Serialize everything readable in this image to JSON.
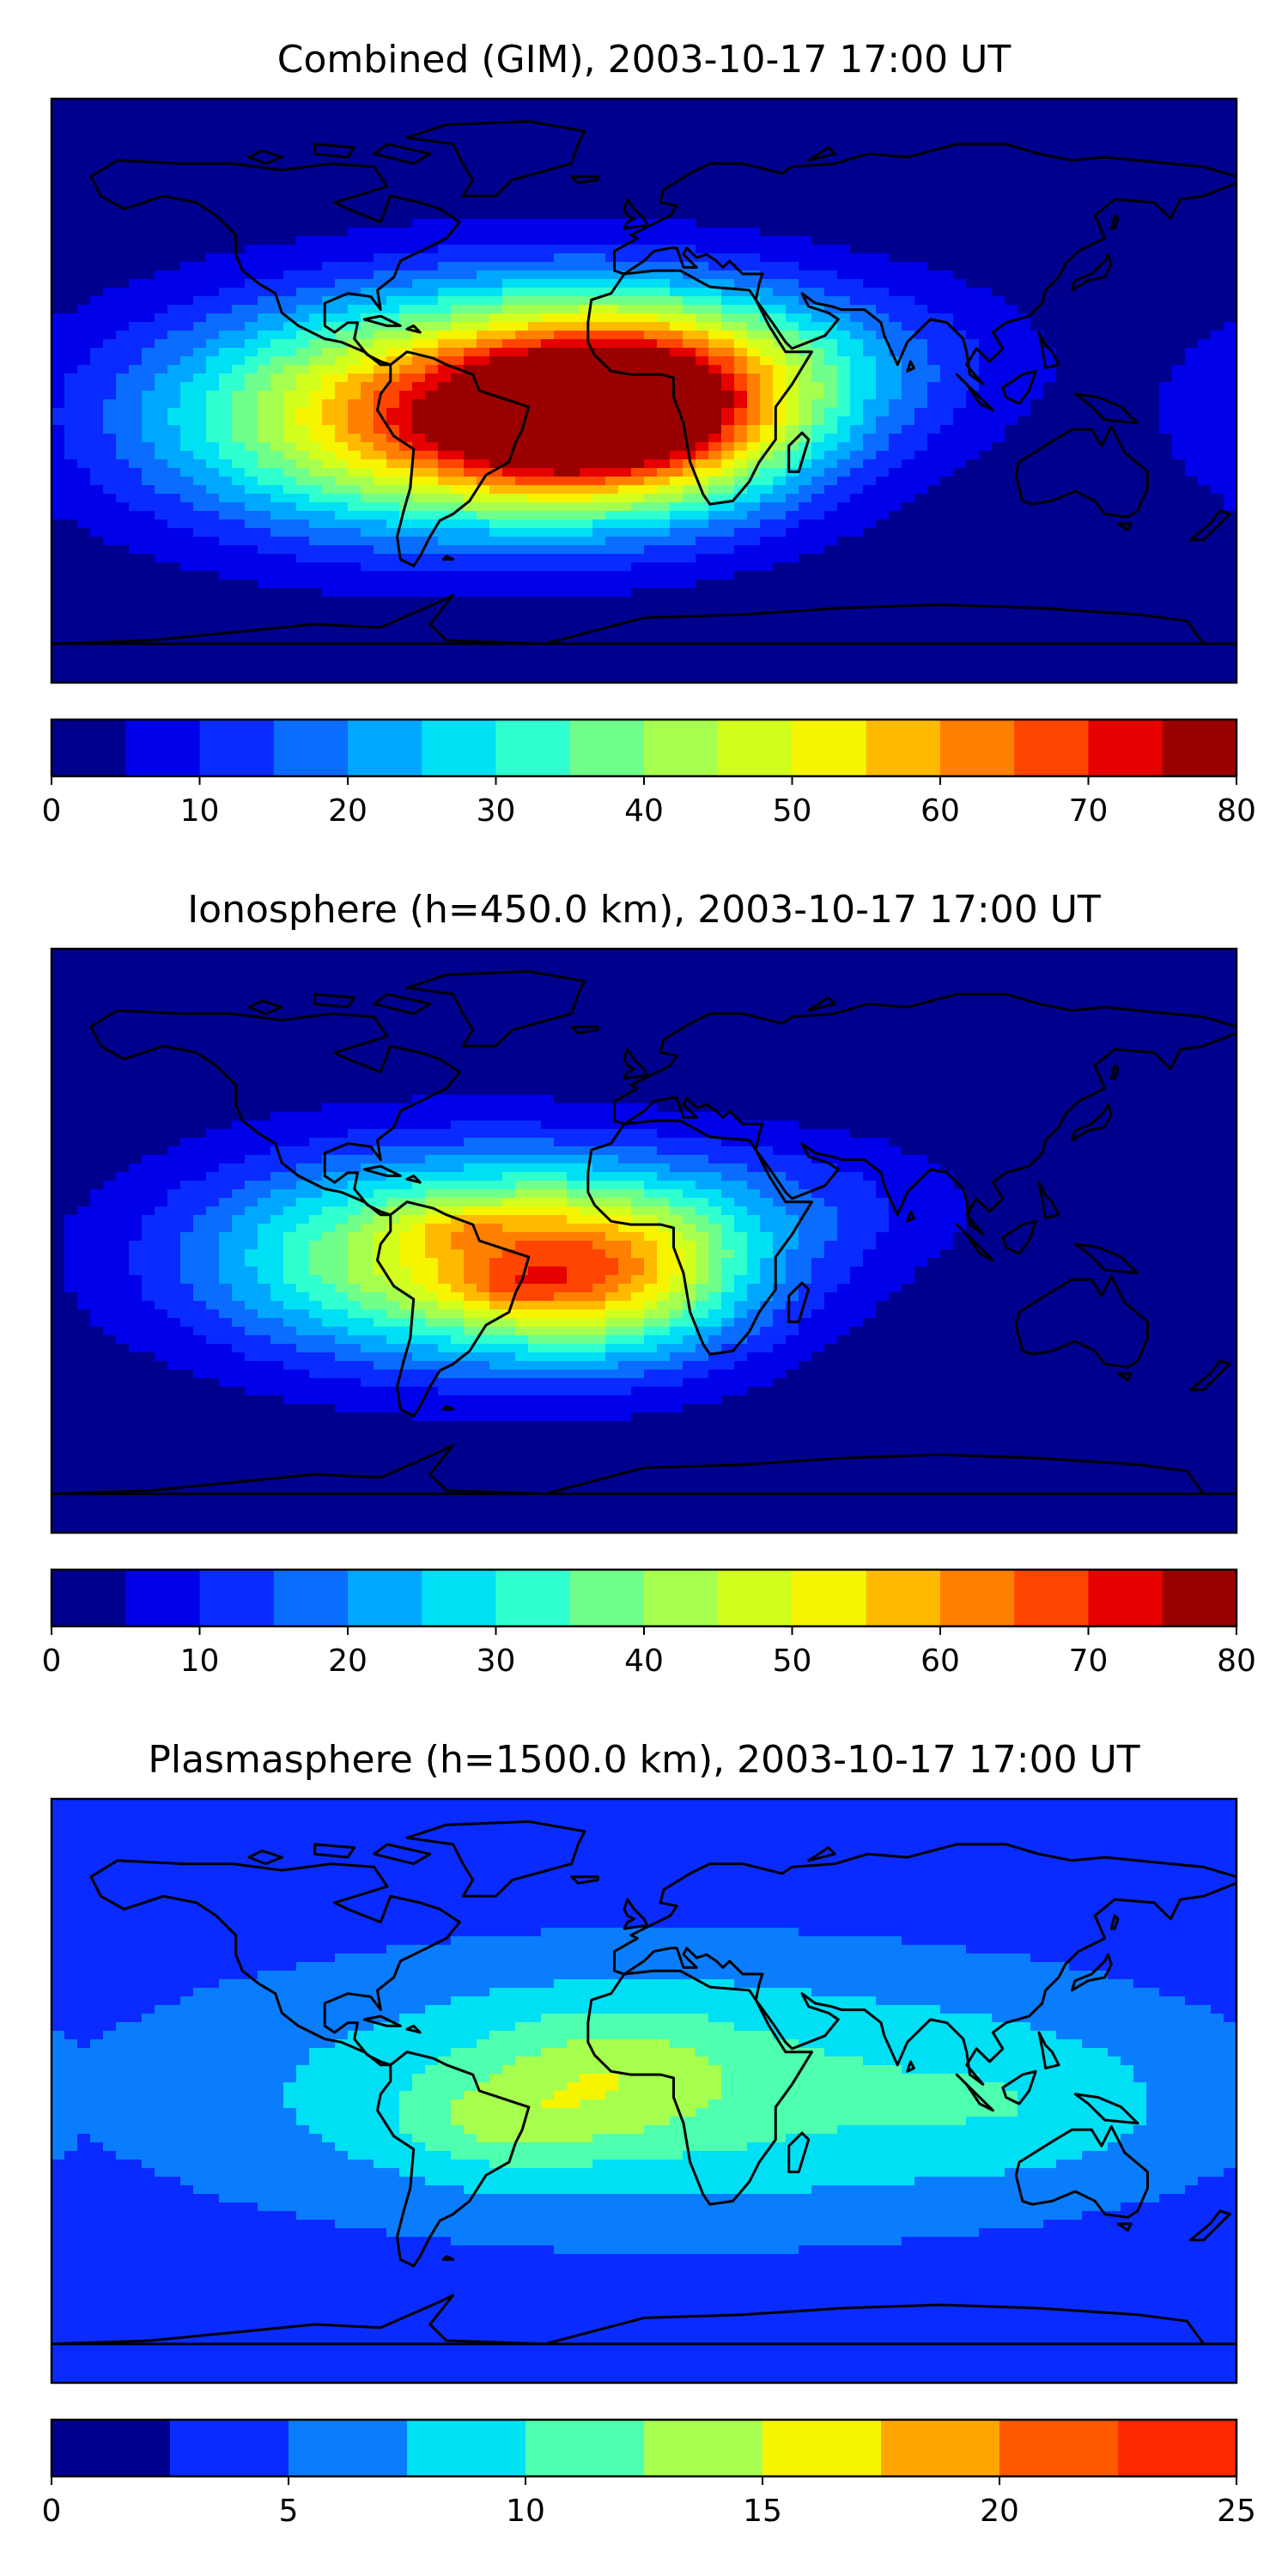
{
  "chart_data": [
    {
      "type": "heatmap",
      "title": "Combined (GIM), 2003-10-17 17:00 UT",
      "colorbar": {
        "levels": [
          0,
          5,
          10,
          15,
          20,
          25,
          30,
          35,
          40,
          45,
          50,
          55,
          60,
          65,
          70,
          75,
          80
        ],
        "ticks": [
          "0",
          "10",
          "20",
          "30",
          "40",
          "50",
          "60",
          "70",
          "80"
        ],
        "colors": [
          "#00008f",
          "#0000ea",
          "#0a2bff",
          "#0a6dff",
          "#00a7ff",
          "#00e0f5",
          "#30ffd0",
          "#70ff8a",
          "#a6ff4e",
          "#d2ff1e",
          "#f7f400",
          "#ffba00",
          "#ff7f00",
          "#ff4500",
          "#e60000",
          "#9b0000"
        ]
      },
      "map": {
        "background": 1,
        "centers": [
          {
            "lon": -60,
            "lat": -8,
            "amp": 62,
            "sx": 60,
            "sy": 24
          },
          {
            "lon": 0,
            "lat": -5,
            "amp": 55,
            "sx": 35,
            "sy": 20
          },
          {
            "lon": -35,
            "lat": -15,
            "amp": 10,
            "sx": 25,
            "sy": 12
          },
          {
            "lon": 60,
            "lat": 10,
            "amp": 12,
            "sx": 40,
            "sy": 18
          },
          {
            "lon": -20,
            "lat": 15,
            "amp": 10,
            "sx": 45,
            "sy": 20
          }
        ]
      }
    },
    {
      "type": "heatmap",
      "title": "Ionosphere  (h=450.0 km), 2003-10-17 17:00 UT",
      "colorbar": {
        "levels": [
          0,
          5,
          10,
          15,
          20,
          25,
          30,
          35,
          40,
          45,
          50,
          55,
          60,
          65,
          70,
          75,
          80
        ],
        "ticks": [
          "0",
          "10",
          "20",
          "30",
          "40",
          "50",
          "60",
          "70",
          "80"
        ],
        "colors": [
          "#00008f",
          "#0000ea",
          "#0a2bff",
          "#0a6dff",
          "#00a7ff",
          "#00e0f5",
          "#30ffd0",
          "#70ff8a",
          "#a6ff4e",
          "#d2ff1e",
          "#f7f400",
          "#ffba00",
          "#ff7f00",
          "#ff4500",
          "#e60000",
          "#9b0000"
        ]
      },
      "map": {
        "background": 1,
        "centers": [
          {
            "lon": -55,
            "lat": -5,
            "amp": 48,
            "sx": 55,
            "sy": 22
          },
          {
            "lon": -10,
            "lat": -10,
            "amp": 30,
            "sx": 30,
            "sy": 18
          },
          {
            "lon": -40,
            "lat": -15,
            "amp": 8,
            "sx": 12,
            "sy": 5
          },
          {
            "lon": -58,
            "lat": 4,
            "amp": 8,
            "sx": 12,
            "sy": 5
          },
          {
            "lon": 50,
            "lat": 12,
            "amp": 8,
            "sx": 35,
            "sy": 15
          }
        ]
      }
    },
    {
      "type": "heatmap",
      "title": "Plasmasphere (h=1500.0 km), 2003-10-17 17:00 UT",
      "colorbar": {
        "levels": [
          0,
          2.5,
          5,
          7.5,
          10,
          12.5,
          15,
          17.5,
          20,
          22.5,
          25
        ],
        "ticks": [
          "0",
          "5",
          "10",
          "15",
          "20",
          "25"
        ],
        "colors": [
          "#00008f",
          "#0a2bff",
          "#0a7dff",
          "#00e0f5",
          "#4dffae",
          "#a6ff4e",
          "#f7f400",
          "#ffa500",
          "#ff5a00",
          "#ff2800",
          "#b20000"
        ]
      },
      "map": {
        "background": 3,
        "centers": [
          {
            "lon": 10,
            "lat": 0,
            "amp": 8,
            "sx": 110,
            "sy": 30
          },
          {
            "lon": -10,
            "lat": 5,
            "amp": 4,
            "sx": 25,
            "sy": 14
          },
          {
            "lon": -45,
            "lat": -10,
            "amp": 3.5,
            "sx": 20,
            "sy": 10
          },
          {
            "lon": 120,
            "lat": -5,
            "amp": 2,
            "sx": 30,
            "sy": 15
          }
        ]
      }
    }
  ]
}
